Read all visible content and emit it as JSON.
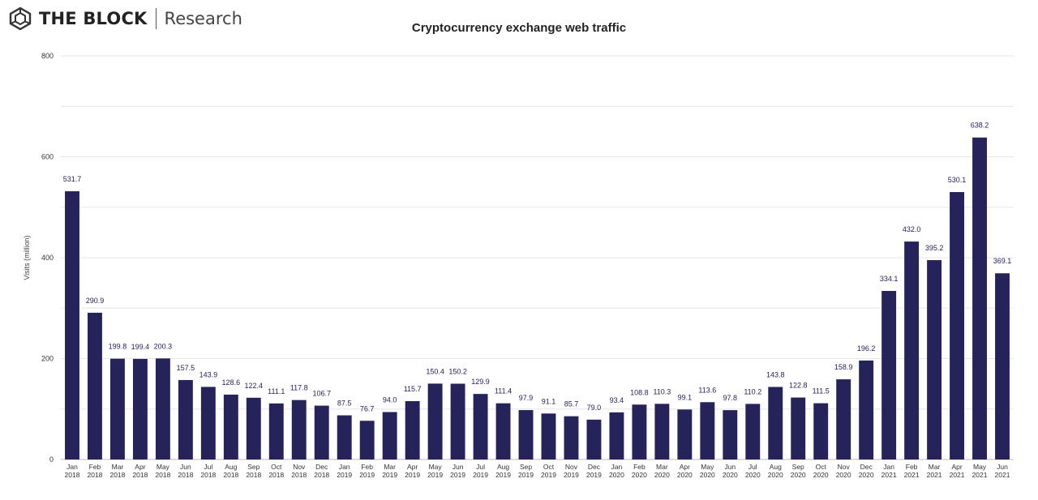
{
  "brand": {
    "name": "THE BLOCK",
    "sub": "Research",
    "logo_icon": "the-block-cube-logo-icon"
  },
  "chart_data": {
    "type": "bar",
    "title": "Cryptocurrency exchange web traffic",
    "xlabel": "",
    "ylabel": "Visits (million)",
    "ylim": [
      0,
      800
    ],
    "yticks": [
      0,
      200,
      400,
      600,
      800
    ],
    "grid": true,
    "bar_color": "#25235a",
    "categories": [
      [
        "Jan",
        "2018"
      ],
      [
        "Feb",
        "2018"
      ],
      [
        "Mar",
        "2018"
      ],
      [
        "Apr",
        "2018"
      ],
      [
        "May",
        "2018"
      ],
      [
        "Jun",
        "2018"
      ],
      [
        "Jul",
        "2018"
      ],
      [
        "Aug",
        "2018"
      ],
      [
        "Sep",
        "2018"
      ],
      [
        "Oct",
        "2018"
      ],
      [
        "Nov",
        "2018"
      ],
      [
        "Dec",
        "2018"
      ],
      [
        "Jan",
        "2019"
      ],
      [
        "Feb",
        "2019"
      ],
      [
        "Mar",
        "2019"
      ],
      [
        "Apr",
        "2019"
      ],
      [
        "May",
        "2019"
      ],
      [
        "Jun",
        "2019"
      ],
      [
        "Jul",
        "2019"
      ],
      [
        "Aug",
        "2019"
      ],
      [
        "Sep",
        "2019"
      ],
      [
        "Oct",
        "2019"
      ],
      [
        "Nov",
        "2019"
      ],
      [
        "Dec",
        "2019"
      ],
      [
        "Jan",
        "2020"
      ],
      [
        "Feb",
        "2020"
      ],
      [
        "Mar",
        "2020"
      ],
      [
        "Apr",
        "2020"
      ],
      [
        "May",
        "2020"
      ],
      [
        "Jun",
        "2020"
      ],
      [
        "Jul",
        "2020"
      ],
      [
        "Aug",
        "2020"
      ],
      [
        "Sep",
        "2020"
      ],
      [
        "Oct",
        "2020"
      ],
      [
        "Nov",
        "2020"
      ],
      [
        "Dec",
        "2020"
      ],
      [
        "Jan",
        "2021"
      ],
      [
        "Feb",
        "2021"
      ],
      [
        "Mar",
        "2021"
      ],
      [
        "Apr",
        "2021"
      ],
      [
        "May",
        "2021"
      ],
      [
        "Jun",
        "2021"
      ]
    ],
    "values": [
      531.7,
      290.9,
      199.8,
      199.4,
      200.3,
      157.5,
      143.9,
      128.6,
      122.4,
      111.1,
      117.8,
      106.7,
      87.5,
      76.7,
      94.0,
      115.7,
      150.4,
      150.2,
      129.9,
      111.4,
      97.9,
      91.1,
      85.7,
      79.0,
      93.4,
      108.8,
      110.3,
      99.1,
      113.6,
      97.8,
      110.2,
      143.8,
      122.8,
      111.5,
      158.9,
      196.2,
      334.1,
      432.0,
      395.2,
      530.1,
      638.2,
      369.1
    ]
  }
}
